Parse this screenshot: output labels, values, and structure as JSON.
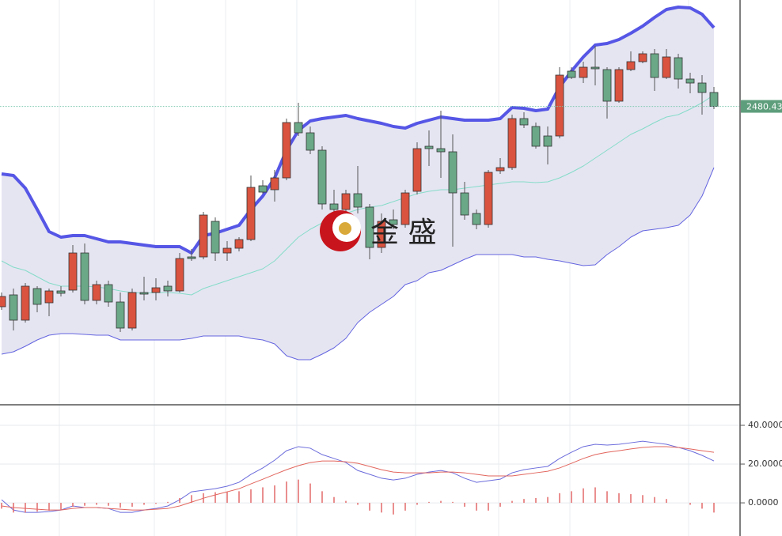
{
  "chart_data": [
    {
      "type": "candlestick",
      "ylim": [
        2105,
        2615
      ],
      "up_color": "#d9533f",
      "down_color": "#6aa888",
      "open": [
        2227,
        2242,
        2210,
        2250,
        2232,
        2247,
        2248,
        2295,
        2235,
        2255,
        2233,
        2200,
        2245,
        2245,
        2253,
        2247,
        2290,
        2290,
        2335,
        2295,
        2301,
        2312,
        2380,
        2375,
        2390,
        2460,
        2447,
        2425,
        2357,
        2350,
        2370,
        2353,
        2302,
        2337,
        2331,
        2373,
        2430,
        2427,
        2423,
        2371,
        2345,
        2331,
        2399,
        2403,
        2465,
        2455,
        2443,
        2443,
        2525,
        2517,
        2530,
        2527,
        2487,
        2527,
        2537,
        2547,
        2517,
        2542,
        2515,
        2510,
        2498
      ],
      "high": [
        2245,
        2250,
        2257,
        2253,
        2250,
        2253,
        2305,
        2307,
        2260,
        2260,
        2245,
        2250,
        2265,
        2263,
        2260,
        2295,
        2300,
        2347,
        2340,
        2310,
        2315,
        2393,
        2387,
        2400,
        2465,
        2485,
        2455,
        2430,
        2375,
        2375,
        2405,
        2357,
        2345,
        2350,
        2375,
        2435,
        2450,
        2475,
        2445,
        2385,
        2350,
        2400,
        2415,
        2470,
        2473,
        2460,
        2455,
        2530,
        2530,
        2537,
        2557,
        2530,
        2530,
        2550,
        2550,
        2553,
        2553,
        2547,
        2523,
        2520,
        2505
      ],
      "low": [
        2223,
        2197,
        2207,
        2220,
        2215,
        2240,
        2245,
        2230,
        2230,
        2227,
        2195,
        2197,
        2235,
        2235,
        2240,
        2245,
        2285,
        2287,
        2285,
        2285,
        2297,
        2310,
        2370,
        2360,
        2387,
        2443,
        2420,
        2350,
        2345,
        2340,
        2345,
        2287,
        2295,
        2325,
        2327,
        2369,
        2405,
        2390,
        2303,
        2337,
        2325,
        2327,
        2395,
        2400,
        2453,
        2427,
        2407,
        2440,
        2515,
        2510,
        2507,
        2465,
        2485,
        2525,
        2535,
        2500,
        2515,
        2503,
        2497,
        2470,
        2477
      ],
      "close": [
        2240,
        2210,
        2253,
        2230,
        2247,
        2244,
        2295,
        2235,
        2255,
        2233,
        2200,
        2245,
        2243,
        2251,
        2247,
        2288,
        2288,
        2343,
        2295,
        2301,
        2312,
        2378,
        2372,
        2390,
        2460,
        2447,
        2425,
        2357,
        2350,
        2370,
        2353,
        2302,
        2335,
        2331,
        2371,
        2427,
        2427,
        2423,
        2371,
        2343,
        2331,
        2397,
        2403,
        2465,
        2457,
        2430,
        2430,
        2520,
        2517,
        2530,
        2528,
        2487,
        2527,
        2537,
        2547,
        2517,
        2543,
        2515,
        2510,
        2498,
        2480.43
      ],
      "bands": {
        "fill": "#e5e5f2",
        "upper": {
          "color": "#5656e6",
          "values": [
            2395,
            2393,
            2377,
            2350,
            2322,
            2315,
            2317,
            2317,
            2313,
            2309,
            2309,
            2307,
            2305,
            2303,
            2303,
            2303,
            2295,
            2317,
            2320,
            2325,
            2330,
            2350,
            2367,
            2390,
            2425,
            2450,
            2462,
            2465,
            2467,
            2469,
            2465,
            2462,
            2459,
            2455,
            2453,
            2459,
            2463,
            2467,
            2465,
            2463,
            2463,
            2463,
            2465,
            2479,
            2478,
            2475,
            2477,
            2505,
            2525,
            2543,
            2558,
            2560,
            2565,
            2573,
            2582,
            2593,
            2603,
            2606,
            2605,
            2597,
            2580
          ]
        },
        "middle": {
          "color": "#86dcc8",
          "values": [
            2285,
            2277,
            2273,
            2265,
            2257,
            2253,
            2253,
            2253,
            2252,
            2250,
            2247,
            2245,
            2244,
            2245,
            2245,
            2244,
            2242,
            2250,
            2255,
            2260,
            2265,
            2270,
            2275,
            2285,
            2300,
            2315,
            2325,
            2333,
            2340,
            2345,
            2350,
            2353,
            2355,
            2360,
            2365,
            2370,
            2373,
            2375,
            2375,
            2377,
            2379,
            2381,
            2383,
            2385,
            2385,
            2384,
            2385,
            2390,
            2397,
            2405,
            2415,
            2425,
            2435,
            2445,
            2452,
            2460,
            2467,
            2470,
            2477,
            2485,
            2495
          ]
        },
        "lower": {
          "color": "#6464e0",
          "values": [
            2167,
            2170,
            2177,
            2185,
            2191,
            2193,
            2193,
            2192,
            2191,
            2191,
            2185,
            2185,
            2185,
            2185,
            2185,
            2185,
            2187,
            2190,
            2190,
            2190,
            2190,
            2187,
            2185,
            2180,
            2165,
            2160,
            2160,
            2167,
            2175,
            2187,
            2207,
            2220,
            2230,
            2240,
            2255,
            2260,
            2270,
            2273,
            2280,
            2287,
            2293,
            2293,
            2293,
            2293,
            2290,
            2290,
            2287,
            2285,
            2282,
            2279,
            2280,
            2293,
            2303,
            2315,
            2323,
            2325,
            2327,
            2330,
            2343,
            2367,
            2403
          ]
        }
      },
      "last_price": {
        "value": 2480.43,
        "label": "2480.430",
        "color": "#5e9e7c"
      },
      "watermark": "金 盛"
    },
    {
      "type": "macd",
      "ylim": [
        -17.1,
        50.6
      ],
      "yticks": [
        {
          "value": 0,
          "label": "0.0000"
        },
        {
          "value": 20,
          "label": "20.0000"
        },
        {
          "value": 40,
          "label": "40.0000"
        }
      ],
      "series": [
        {
          "type": "line",
          "color": "#6b6bdc",
          "values": [
            1.6,
            -3.7,
            -4.9,
            -4.9,
            -4.5,
            -3.7,
            -1.6,
            -2.4,
            -2.4,
            -2.9,
            -4.9,
            -4.9,
            -3.7,
            -2.9,
            -1.6,
            1.6,
            5.7,
            6.5,
            7.3,
            8.6,
            10.6,
            14.7,
            18.0,
            22.0,
            26.9,
            29.0,
            28.2,
            24.9,
            22.9,
            20.8,
            16.7,
            14.7,
            12.7,
            11.8,
            12.7,
            14.7,
            15.9,
            16.7,
            15.5,
            12.7,
            10.6,
            11.4,
            12.2,
            15.5,
            17.1,
            18.0,
            18.8,
            22.9,
            26.1,
            29.0,
            30.2,
            29.8,
            30.2,
            31.0,
            31.8,
            31.0,
            30.2,
            28.6,
            26.9,
            24.5,
            21.6
          ]
        },
        {
          "type": "line",
          "color": "#e2665e",
          "values": [
            -1.6,
            -2.4,
            -2.9,
            -3.3,
            -3.7,
            -3.7,
            -2.9,
            -2.4,
            -2.4,
            -2.9,
            -3.3,
            -3.7,
            -3.7,
            -3.3,
            -2.9,
            -1.6,
            0.4,
            2.4,
            4.1,
            5.7,
            7.3,
            9.8,
            12.2,
            14.7,
            17.1,
            19.2,
            20.8,
            21.6,
            21.6,
            21.2,
            20.4,
            18.8,
            17.1,
            15.9,
            15.5,
            15.5,
            15.5,
            15.9,
            15.9,
            15.5,
            14.7,
            13.9,
            13.9,
            13.9,
            14.7,
            15.5,
            16.3,
            18.0,
            20.4,
            22.9,
            24.9,
            26.1,
            26.9,
            27.8,
            28.6,
            29.0,
            29.0,
            28.6,
            27.8,
            26.9,
            26.1
          ]
        },
        {
          "type": "bar",
          "color": "#e46a6a",
          "values": [
            -3,
            -5,
            -5,
            -4.5,
            -4,
            -3.5,
            -2,
            -1.5,
            -1,
            -1.5,
            -2.5,
            -2,
            -1,
            -0.5,
            0.5,
            2.5,
            4,
            5,
            5.5,
            5.5,
            6,
            7,
            8,
            9,
            11,
            12,
            10,
            6,
            3,
            1,
            -1,
            -4,
            -5,
            -6,
            -4,
            -1,
            0.5,
            1,
            0.5,
            -2,
            -4,
            -4,
            -2,
            1,
            2,
            2.5,
            3,
            5,
            6,
            7.5,
            8,
            6,
            5,
            4.5,
            4,
            3,
            2,
            0,
            -1,
            -3,
            -5
          ]
        }
      ]
    }
  ]
}
